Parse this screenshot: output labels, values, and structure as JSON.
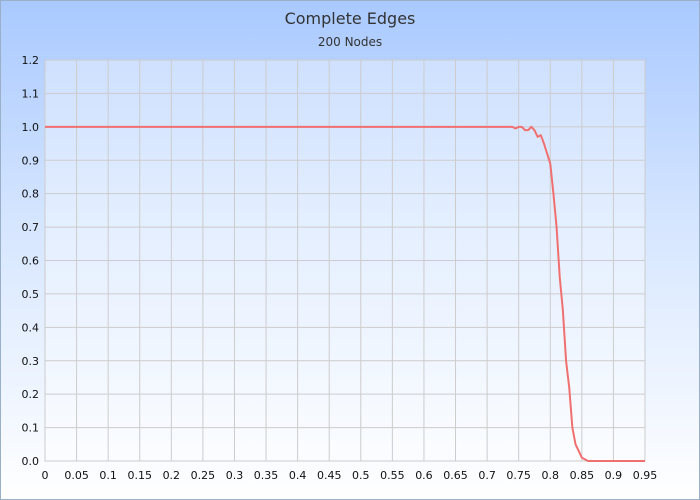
{
  "chart_data": {
    "type": "line",
    "title": "Complete Edges",
    "subtitle": "200 Nodes",
    "xlabel": "",
    "ylabel": "",
    "xlim": [
      0,
      0.95
    ],
    "ylim": [
      0,
      1.2
    ],
    "x_ticks": [
      "0",
      "0.05",
      "0.1",
      "0.15",
      "0.2",
      "0.25",
      "0.3",
      "0.35",
      "0.4",
      "0.45",
      "0.5",
      "0.55",
      "0.6",
      "0.65",
      "0.7",
      "0.75",
      "0.8",
      "0.85",
      "0.9",
      "0.95"
    ],
    "y_ticks": [
      "0.0",
      "0.1",
      "0.2",
      "0.3",
      "0.4",
      "0.5",
      "0.6",
      "0.7",
      "0.8",
      "0.9",
      "1.0",
      "1.1",
      "1.2"
    ],
    "grid": true,
    "legend": "none",
    "colors": {
      "line": "#f07070",
      "grid": "#cccccc"
    },
    "series": [
      {
        "x": [
          0,
          0.05,
          0.1,
          0.15,
          0.2,
          0.25,
          0.3,
          0.35,
          0.4,
          0.45,
          0.5,
          0.55,
          0.6,
          0.65,
          0.7,
          0.73,
          0.74,
          0.745,
          0.75,
          0.755,
          0.76,
          0.765,
          0.77,
          0.775,
          0.78,
          0.785,
          0.79,
          0.795,
          0.8,
          0.805,
          0.81,
          0.815,
          0.82,
          0.825,
          0.83,
          0.835,
          0.84,
          0.845,
          0.85,
          0.855,
          0.86,
          0.865,
          0.87,
          0.9,
          0.95
        ],
        "y": [
          1,
          1,
          1,
          1,
          1,
          1,
          1,
          1,
          1,
          1,
          1,
          1,
          1,
          1,
          1,
          1,
          1,
          0.995,
          1,
          1,
          0.99,
          0.99,
          1,
          0.99,
          0.97,
          0.975,
          0.95,
          0.92,
          0.89,
          0.8,
          0.7,
          0.55,
          0.45,
          0.3,
          0.22,
          0.1,
          0.05,
          0.03,
          0.01,
          0.005,
          0,
          0,
          0,
          0,
          0
        ]
      }
    ]
  }
}
